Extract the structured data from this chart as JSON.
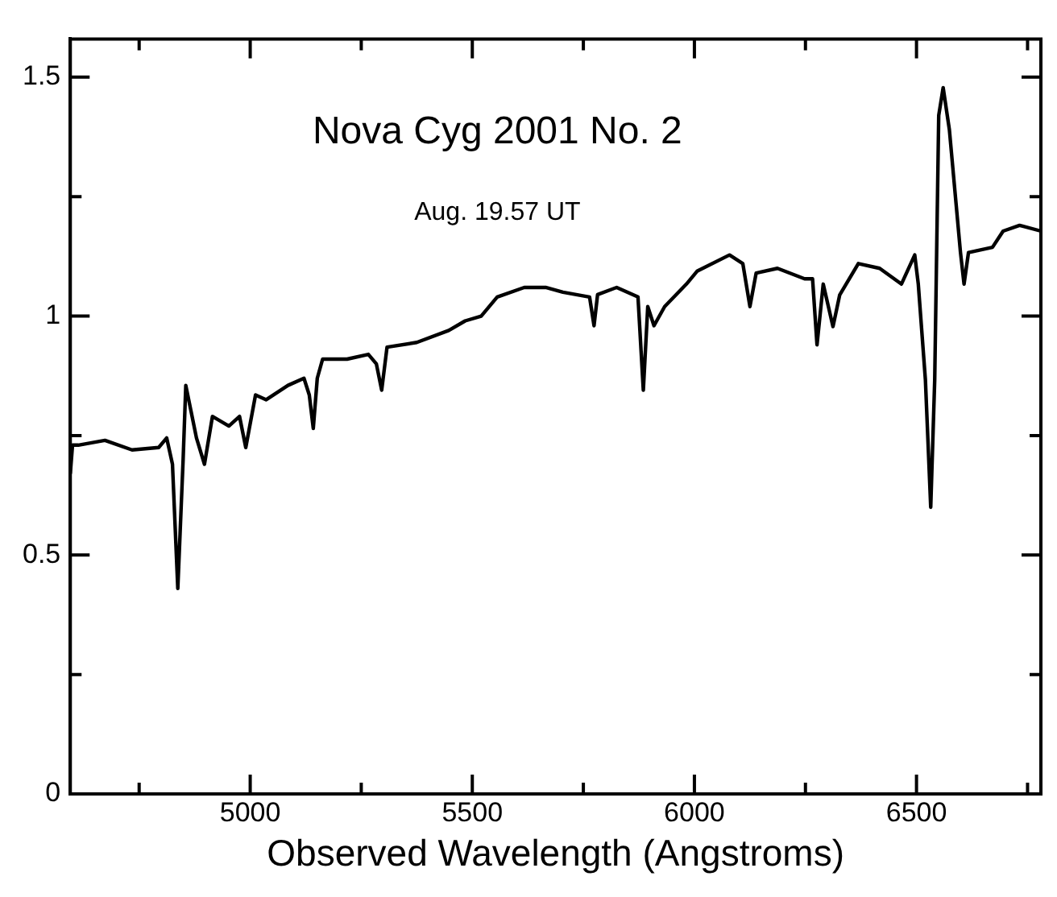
{
  "chart_data": {
    "type": "line",
    "title": "Nova Cyg 2001 No. 2",
    "subtitle": "Aug. 19.57 UT",
    "xlabel": "Observed Wavelength (Angstroms)",
    "series": [
      {
        "color": "#000000",
        "x": [
          4595,
          4600,
          4613,
          4673,
          4734,
          4794,
          4812,
          4825,
          4837,
          4849,
          4855,
          4867,
          4879,
          4897,
          4915,
          4952,
          4976,
          4990,
          5012,
          5036,
          5085,
          5121,
          5133,
          5142,
          5151,
          5163,
          5218,
          5266,
          5284,
          5296,
          5308,
          5375,
          5447,
          5484,
          5520,
          5556,
          5617,
          5665,
          5704,
          5764,
          5774,
          5782,
          5825,
          5873,
          5885,
          5895,
          5909,
          5933,
          5982,
          6006,
          6079,
          6109,
          6125,
          6139,
          6187,
          6248,
          6266,
          6276,
          6290,
          6312,
          6327,
          6369,
          6417,
          6466,
          6496,
          6504,
          6520,
          6532,
          6541,
          6550,
          6560,
          6574,
          6599,
          6607,
          6617,
          6671,
          6695,
          6732,
          6780
        ],
        "values": [
          0.67,
          0.73,
          0.73,
          0.74,
          0.72,
          0.725,
          0.745,
          0.69,
          0.43,
          0.7,
          0.855,
          0.8,
          0.745,
          0.69,
          0.79,
          0.77,
          0.79,
          0.725,
          0.835,
          0.825,
          0.855,
          0.87,
          0.835,
          0.765,
          0.87,
          0.91,
          0.91,
          0.92,
          0.9,
          0.845,
          0.935,
          0.945,
          0.97,
          0.99,
          1.0,
          1.04,
          1.06,
          1.06,
          1.05,
          1.04,
          0.98,
          1.045,
          1.06,
          1.04,
          0.845,
          1.02,
          0.98,
          1.02,
          1.067,
          1.094,
          1.128,
          1.11,
          1.02,
          1.09,
          1.1,
          1.078,
          1.078,
          0.94,
          1.067,
          0.978,
          1.044,
          1.11,
          1.1,
          1.067,
          1.128,
          1.067,
          0.867,
          0.6,
          0.867,
          1.42,
          1.478,
          1.39,
          1.133,
          1.067,
          1.133,
          1.144,
          1.178,
          1.19,
          1.178
        ]
      }
    ],
    "xlim": [
      4595,
      6780
    ],
    "xticks": [
      {
        "value": 4750,
        "label": null
      },
      5000,
      {
        "value": 5250,
        "label": null
      },
      5500,
      {
        "value": 5750,
        "label": null
      },
      6000,
      {
        "value": 6250,
        "label": null
      },
      6500,
      {
        "value": 6750,
        "label": null
      }
    ],
    "ylim": [
      0,
      1.58
    ],
    "yticks": [
      0,
      {
        "value": 0.25,
        "label": null
      },
      0.5,
      {
        "value": 0.75,
        "label": null
      },
      1,
      {
        "value": 1.25,
        "label": null
      },
      1.5
    ],
    "grid": false,
    "legend": false,
    "marker": "none",
    "line_style": "solid"
  }
}
